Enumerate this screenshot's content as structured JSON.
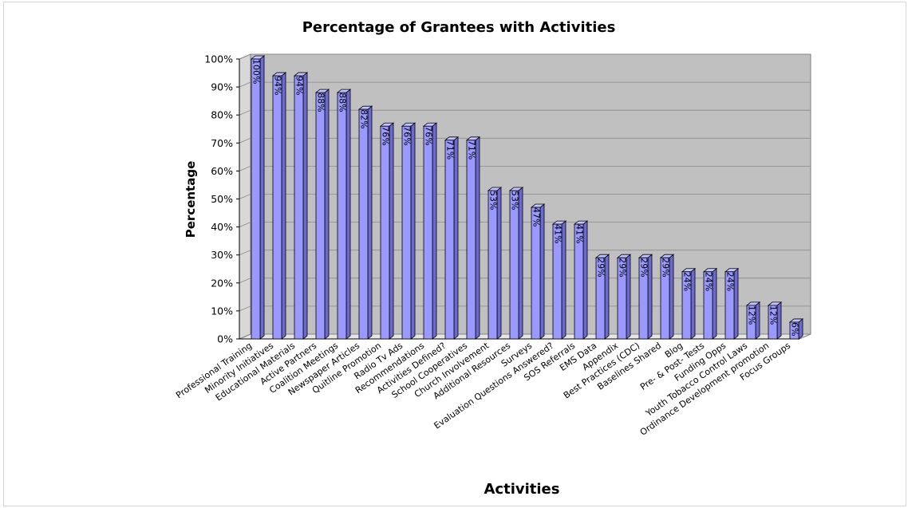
{
  "chart_data": {
    "type": "bar",
    "title": "Percentage of Grantees with Activities",
    "xlabel": "Activities",
    "ylabel": "Percentage",
    "ylim": [
      0,
      100
    ],
    "yticks": [
      "0%",
      "10%",
      "20%",
      "30%",
      "40%",
      "50%",
      "60%",
      "70%",
      "80%",
      "90%",
      "100%"
    ],
    "grid": true,
    "legend": "none",
    "colors": {
      "bar_front": "#9999ff",
      "bar_side": "#6a6ad0",
      "bar_top": "#c4c4ff",
      "plot_back": "#c0c0c0",
      "plot_floor": "#e6e6e6",
      "grid": "#8a8a8a"
    },
    "categories": [
      "Professional Training",
      "Minority Initiatives",
      "Educational Materials",
      "Active Partners",
      "Coalition Meetings",
      "Newspaper Articles",
      "Quitline Promotion",
      "Radio Tv Ads",
      "Recommendations",
      "Activities Defined?",
      "School Cooperatives",
      "Church Involvement",
      "Additional Resources",
      "Surveys",
      "Evaluation Questions Answered?",
      "SOS Referrals",
      "EMS Data",
      "Appendix",
      "Best Practices (CDC)",
      "Baselines Shared",
      "Blog",
      "Pre- & Post- Tests",
      "Funding Opps",
      "Youth Tobacco Control Laws",
      "Ordinance Development promotion",
      "Focus Groups"
    ],
    "values": [
      100,
      94,
      94,
      88,
      88,
      82,
      76,
      76,
      76,
      71,
      71,
      53,
      53,
      47,
      41,
      41,
      29,
      29,
      29,
      29,
      24,
      24,
      24,
      12,
      12,
      6
    ],
    "labels": [
      "100%",
      "94%",
      "94%",
      "88%",
      "88%",
      "82%",
      "76%",
      "76%",
      "76%",
      "71%",
      "71%",
      "53%",
      "53%",
      "47%",
      "41%",
      "41%",
      "29%",
      "29%",
      "29%",
      "29%",
      "24%",
      "24%",
      "24%",
      "12%",
      "12%",
      "6%"
    ]
  }
}
